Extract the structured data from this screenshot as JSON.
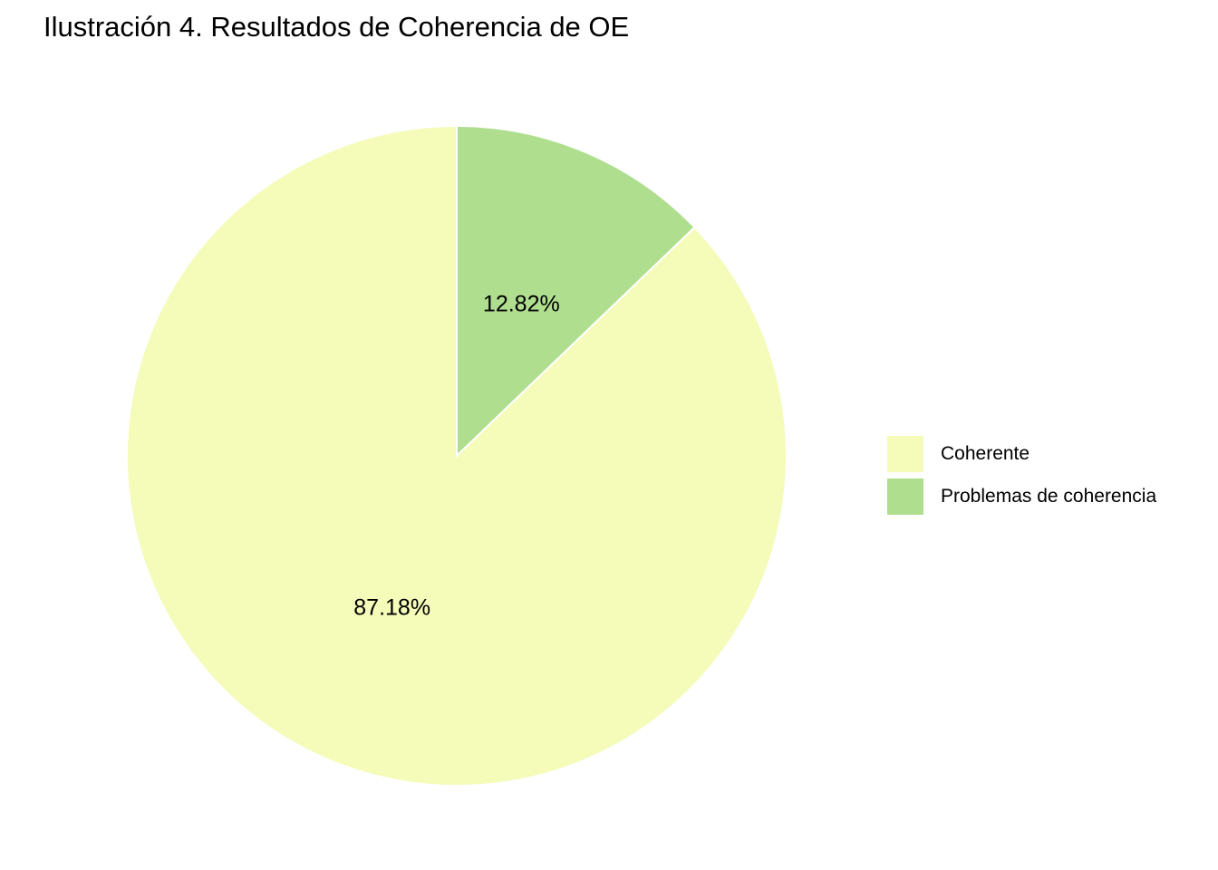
{
  "chart_data": {
    "type": "pie",
    "title": "Ilustración 4. Resultados de Coherencia de OE",
    "start_angle": "12 o'clock",
    "direction": "counterclockwise from top for first slice",
    "legend_position": "right",
    "slices": [
      {
        "label": "Coherente",
        "value": 87.18,
        "display": "87.18%",
        "color": "#f5fbb8"
      },
      {
        "label": "Problemas de coherencia",
        "value": 12.82,
        "display": "12.82%",
        "color": "#afdf8e"
      }
    ]
  }
}
